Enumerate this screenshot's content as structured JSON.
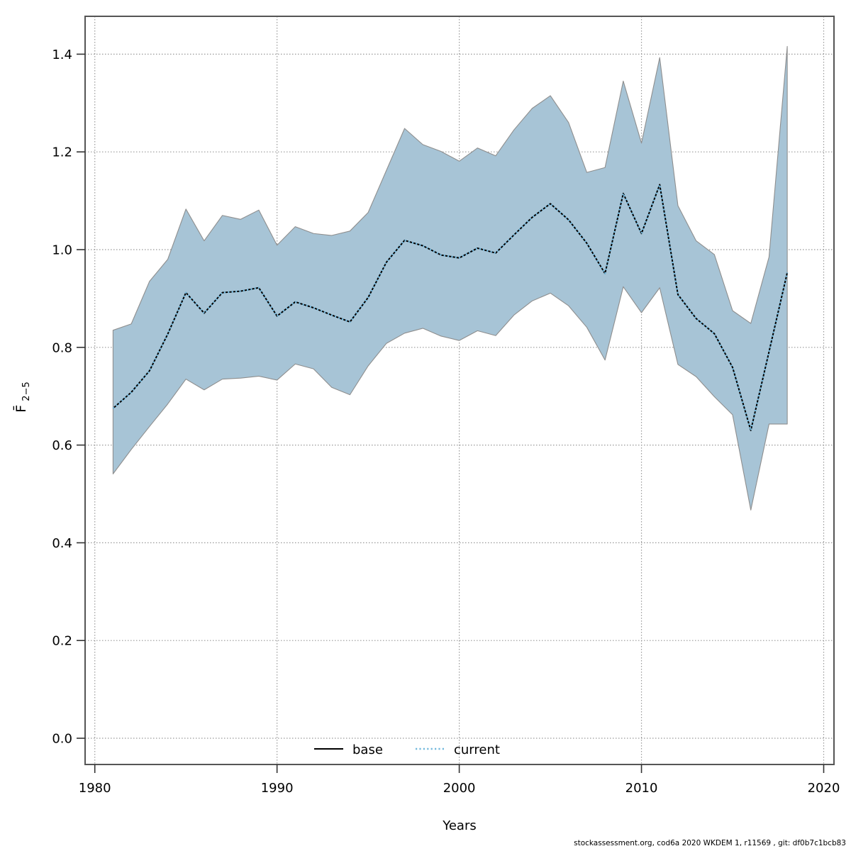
{
  "chart_data": {
    "type": "line",
    "title": "",
    "xlabel": "Years",
    "ylabel_main": "F̄",
    "ylabel_sub": "2−5",
    "footer": "stockassessment.org, cod6a 2020 WKDEM 1, r11569 , git: df0b7c1bcb83",
    "x_ticks": [
      1980,
      1990,
      2000,
      2010,
      2020
    ],
    "y_ticks": [
      "0.0",
      "0.2",
      "0.4",
      "0.6",
      "0.8",
      "1.0",
      "1.2",
      "1.4"
    ],
    "xlim": [
      1979.5,
      2020.6
    ],
    "ylim": [
      -0.054,
      1.477
    ],
    "grid": "dotted",
    "legend_position": "bottom-center-inside",
    "colors": {
      "band": "#a7c4d6",
      "band_edge": "#8e8e8e",
      "base_line": "#000000",
      "current_line": "#74b9dd",
      "grid": "#999999",
      "frame": "#555555",
      "tick": "#333333"
    },
    "years": [
      1981,
      1982,
      1983,
      1984,
      1985,
      1986,
      1987,
      1988,
      1989,
      1990,
      1991,
      1992,
      1993,
      1994,
      1995,
      1996,
      1997,
      1998,
      1999,
      2000,
      2001,
      2002,
      2003,
      2004,
      2005,
      2006,
      2007,
      2008,
      2009,
      2010,
      2011,
      2012,
      2013,
      2014,
      2015,
      2016,
      2017,
      2018
    ],
    "series": [
      {
        "name": "base",
        "style": "solid",
        "color": "#000000",
        "values": [
          0.675,
          0.708,
          0.752,
          0.827,
          0.912,
          0.87,
          0.912,
          0.915,
          0.922,
          0.864,
          0.893,
          0.881,
          0.866,
          0.852,
          0.902,
          0.974,
          1.019,
          1.008,
          0.989,
          0.983,
          1.003,
          0.993,
          1.03,
          1.066,
          1.094,
          1.061,
          1.013,
          0.951,
          1.115,
          1.033,
          1.133,
          0.908,
          0.859,
          0.828,
          0.759,
          0.63,
          0.791,
          0.953
        ]
      },
      {
        "name": "current",
        "style": "dotted",
        "color": "#74b9dd",
        "values": [
          0.675,
          0.708,
          0.752,
          0.827,
          0.912,
          0.87,
          0.912,
          0.915,
          0.922,
          0.864,
          0.893,
          0.881,
          0.866,
          0.852,
          0.902,
          0.974,
          1.019,
          1.008,
          0.989,
          0.983,
          1.003,
          0.993,
          1.03,
          1.066,
          1.094,
          1.061,
          1.013,
          0.951,
          1.115,
          1.033,
          1.133,
          0.908,
          0.859,
          0.828,
          0.759,
          0.63,
          0.791,
          0.953
        ]
      }
    ],
    "band": {
      "upper": [
        0.835,
        0.848,
        0.935,
        0.98,
        1.083,
        1.018,
        1.07,
        1.062,
        1.081,
        1.009,
        1.047,
        1.033,
        1.029,
        1.038,
        1.076,
        1.162,
        1.248,
        1.215,
        1.201,
        1.181,
        1.208,
        1.192,
        1.245,
        1.289,
        1.315,
        1.26,
        1.158,
        1.168,
        1.345,
        1.218,
        1.393,
        1.09,
        1.018,
        0.99,
        0.875,
        0.849,
        0.985,
        1.416
      ],
      "lower": [
        0.541,
        0.591,
        0.638,
        0.684,
        0.735,
        0.713,
        0.735,
        0.737,
        0.741,
        0.733,
        0.766,
        0.756,
        0.718,
        0.703,
        0.762,
        0.808,
        0.829,
        0.839,
        0.823,
        0.814,
        0.834,
        0.824,
        0.866,
        0.895,
        0.911,
        0.885,
        0.841,
        0.774,
        0.924,
        0.871,
        0.922,
        0.765,
        0.74,
        0.699,
        0.662,
        0.467,
        0.643,
        0.643
      ]
    },
    "legend": [
      {
        "label": "base",
        "style": "solid",
        "color": "#000000"
      },
      {
        "label": "current",
        "style": "dotted",
        "color": "#74b9dd"
      }
    ]
  }
}
